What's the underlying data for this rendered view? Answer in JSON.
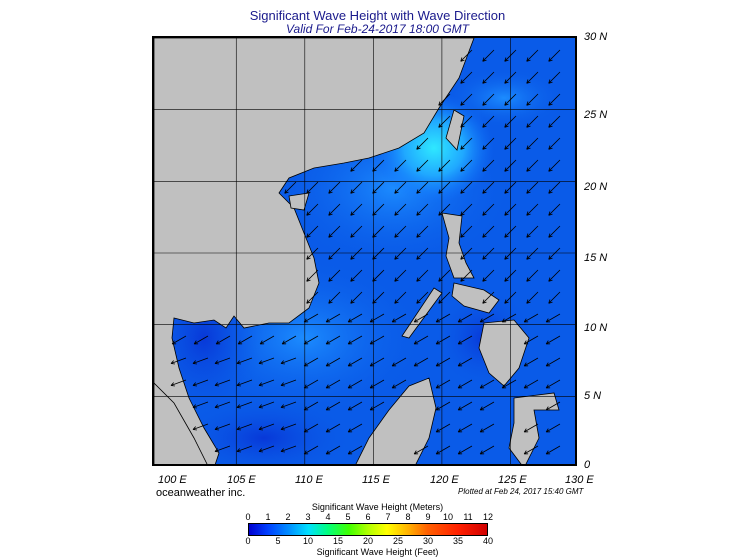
{
  "title": "Significant Wave Height with Wave Direction",
  "subtitle": "Valid For Feb-24-2017 18:00 GMT",
  "lat_labels": [
    "30 N",
    "25 N",
    "20 N",
    "15 N",
    "10 N",
    "5 N",
    "0"
  ],
  "lon_labels": [
    "100 E",
    "105 E",
    "110 E",
    "115 E",
    "120 E",
    "125 E",
    "130 E"
  ],
  "brand": "oceanweather inc.",
  "plotted": "Plotted at Feb 24, 2017 15:40 GMT",
  "colorbar": {
    "meters_title": "Significant Wave Height (Meters)",
    "feet_title": "Significant Wave Height (Feet)",
    "meters_ticks": [
      "0",
      "1",
      "2",
      "3",
      "4",
      "5",
      "6",
      "7",
      "8",
      "9",
      "10",
      "11",
      "12"
    ],
    "feet_ticks": [
      "0",
      "5",
      "10",
      "15",
      "20",
      "25",
      "30",
      "35",
      "40"
    ]
  },
  "colors": {
    "land": "#c0c0c0",
    "sea_deep": "#0a5be8",
    "sea_high": "#2fe0ff",
    "title": "#1a1a8c"
  },
  "map_extent": {
    "lon_min": 99,
    "lon_max": 130,
    "lat_min": 0,
    "lat_max": 30
  }
}
